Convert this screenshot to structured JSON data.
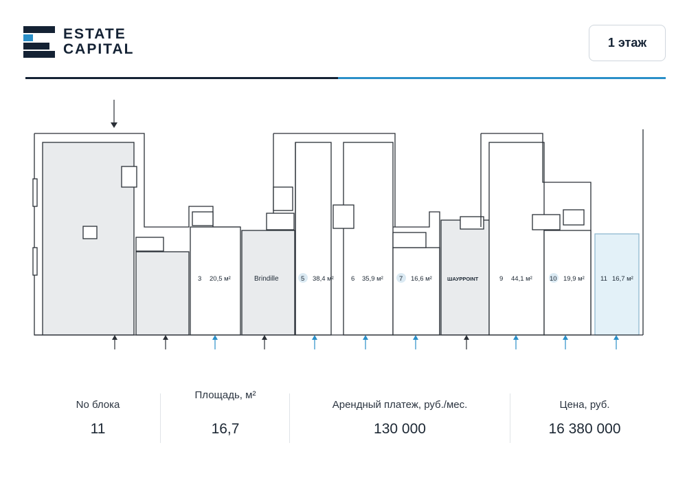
{
  "brand": {
    "line1": "ESTATE",
    "line2": "CAPITAL",
    "color": "#142234"
  },
  "floor_button": {
    "label": "1 этаж"
  },
  "colors": {
    "dark": "#142234",
    "accent": "#2a8fc8",
    "room_fill": "#e9ebed",
    "selected_fill": "#e3f1f8",
    "wall": "#2a2f36"
  },
  "plan": {
    "units": [
      {
        "num": "3",
        "area": "20,5 м²"
      },
      {
        "name": "Brindille"
      },
      {
        "num": "5",
        "area": "38,4 м²"
      },
      {
        "num": "6",
        "area": "35,9 м²"
      },
      {
        "num": "7",
        "area": "16,6 м²"
      },
      {
        "name": "ШАУРPOINT"
      },
      {
        "num": "9",
        "area": "44,1 м²"
      },
      {
        "num": "10",
        "area": "19,9 м²"
      },
      {
        "num": "11",
        "area": "16,7 м²"
      }
    ]
  },
  "stats": {
    "block_label": "No блока",
    "block_value": "11",
    "area_label": "Площадь, м²",
    "area_value": "16,7",
    "rent_label": "Арендный платеж, руб./мес.",
    "rent_value": "130 000",
    "price_label": "Цена, руб.",
    "price_value": "16 380 000"
  }
}
